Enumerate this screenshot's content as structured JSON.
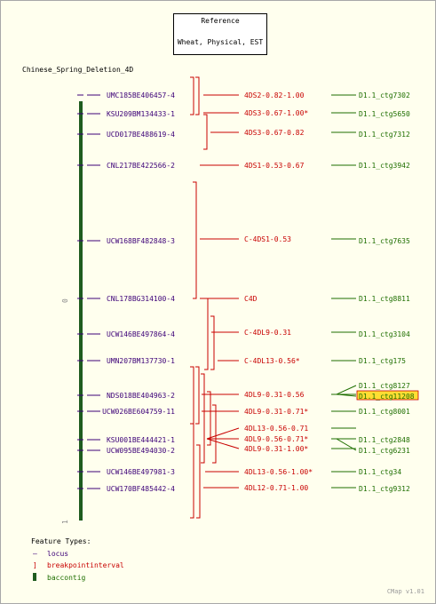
{
  "reference": {
    "title": "Reference",
    "subtitle": "Wheat, Physical, EST"
  },
  "map_title": "Chinese_Spring_Deletion_4D",
  "scale": {
    "start": "0",
    "end": "1"
  },
  "colors": {
    "locus": "#3c0078",
    "breakpoint": "#c80000",
    "contig": "#1e6e00",
    "contig_bar": "#1f5c1f",
    "highlight": "#ffdd33"
  },
  "loci": [
    "UMC185BE406457-4",
    "KSU209BM134433-1",
    "UCD017BE488619-4",
    "CNL217BE422566-2",
    "UCW168BF482848-3",
    "CNL178BG314100-4",
    "UCW146BE497864-4",
    "UMN207BM137730-1",
    "NDS018BE404963-2",
    "UCW026BE604759-11",
    "KSU001BE444421-1",
    "UCW095BE494030-2",
    "UCW146BE497981-3",
    "UCW170BF485442-4"
  ],
  "breakpoints": [
    "4DS2-0.82-1.00",
    "4DS3-0.67-1.00*",
    "4DS3-0.67-0.82",
    "4DS1-0.53-0.67",
    "C-4DS1-0.53",
    "C4D",
    "C-4DL9-0.31",
    "C-4DL13-0.56*",
    "4DL9-0.31-0.56",
    "4DL9-0.31-0.71*",
    "4DL13-0.56-0.71",
    "4DL9-0.56-0.71*",
    "4DL9-0.31-1.00*",
    "4DL13-0.56-1.00*",
    "4DL12-0.71-1.00"
  ],
  "contigs": [
    "D1.1_ctg7302",
    "D1.1_ctg5650",
    "D1.1_ctg7312",
    "D1.1_ctg3942",
    "D1.1_ctg7635",
    "D1.1_ctg8811",
    "D1.1_ctg3104",
    "D1.1_ctg175",
    "D1.1_ctg8127",
    "D1.1_ctg11208",
    "D1.1_ctg8001",
    "D1.1_ctg2848",
    "D1.1_ctg6231",
    "D1.1_ctg34",
    "D1.1_ctg9312"
  ],
  "legend": {
    "title": "Feature Types:",
    "locus": "locus",
    "breakpoint": "breakpointinterval",
    "contig": "baccontig",
    "locus_symbol": "—",
    "breakpoint_symbol": "]"
  },
  "footer": "CMap v1.01"
}
